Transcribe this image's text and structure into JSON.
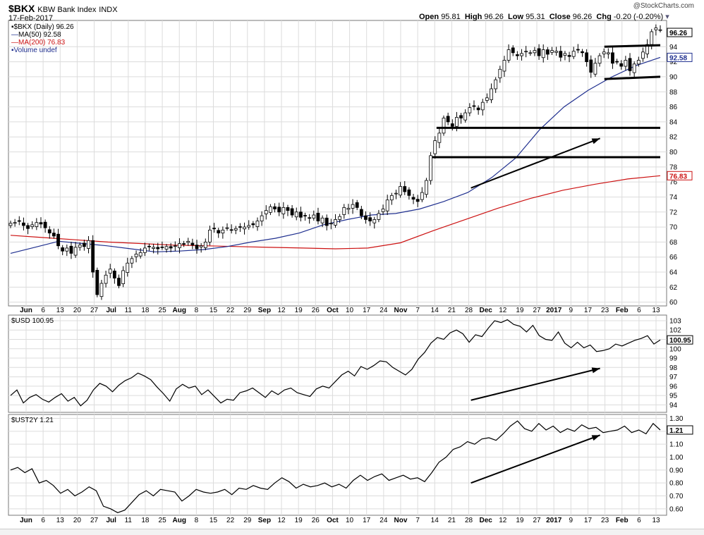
{
  "header": {
    "symbol": "$BKX",
    "name": "KBW Bank Index",
    "exchange": "INDX",
    "date": "17-Feb-2017",
    "watermark": "@StockCharts.com",
    "open_label": "Open",
    "open": "95.81",
    "high_label": "High",
    "high": "96.26",
    "low_label": "Low",
    "low": "95.31",
    "close_label": "Close",
    "close": "96.26",
    "chg_label": "Chg",
    "chg": "-0.20 (-0.20%)"
  },
  "legend": {
    "main": "$BKX (Daily) 96.26",
    "ma50": "MA(50) 92.58",
    "ma200": "MA(200) 76.83",
    "volume": "Volume undef"
  },
  "colors": {
    "price": "#000000",
    "ma50": "#1f2f8f",
    "ma200": "#cc1111",
    "grid": "#dcdcdc",
    "axis": "#555555"
  },
  "x_axis_labels": [
    "Jun",
    "6",
    "13",
    "20",
    "27",
    "Jul",
    "11",
    "18",
    "25",
    "Aug",
    "8",
    "15",
    "22",
    "29",
    "Sep",
    "12",
    "19",
    "26",
    "Oct",
    "10",
    "17",
    "24",
    "Nov",
    "7",
    "14",
    "21",
    "28",
    "Dec",
    "12",
    "19",
    "27",
    "2017",
    "9",
    "17",
    "23",
    "Feb",
    "6",
    "13"
  ],
  "chart_data": [
    {
      "type": "candlestick",
      "title": "$BKX (Daily) 96.26",
      "ylim": [
        59.5,
        97.5
      ],
      "y_ticks": [
        60,
        62,
        64,
        66,
        68,
        70,
        72,
        74,
        76,
        78,
        80,
        82,
        84,
        86,
        88,
        90,
        92,
        94
      ],
      "last_price": "96.26",
      "ma50_last": "92.58",
      "ma200_last": "76.83",
      "close_series": [
        70.5,
        70.6,
        70.8,
        70.2,
        69.8,
        70.3,
        70.6,
        70.4,
        69.9,
        69.2,
        68.8,
        67.5,
        66.8,
        67.2,
        66.5,
        67.3,
        67.6,
        67.4,
        68.2,
        64.0,
        61.0,
        62.5,
        63.6,
        64.4,
        63.2,
        62.2,
        64.2,
        65.2,
        65.8,
        66.4,
        66.6,
        67.2,
        67.4,
        67.3,
        67.1,
        67.3,
        67.4,
        67.2,
        67.5,
        67.8,
        67.7,
        68.1,
        67.6,
        67.1,
        67.5,
        68.0,
        69.6,
        69.8,
        69.2,
        69.6,
        69.9,
        69.6,
        69.8,
        70.0,
        70.0,
        70.2,
        70.3,
        70.8,
        71.5,
        72.2,
        72.7,
        72.4,
        72.0,
        72.6,
        72.2,
        71.6,
        72.0,
        71.3,
        71.5,
        71.2,
        71.6,
        70.8,
        71.2,
        70.2,
        70.5,
        71.0,
        71.4,
        72.6,
        72.5,
        73.0,
        72.6,
        71.5,
        71.0,
        70.8,
        71.0,
        71.8,
        72.4,
        73.6,
        74.2,
        74.5,
        75.4,
        74.7,
        74.2,
        73.7,
        73.4,
        74.6,
        76.2,
        79.5,
        81.5,
        82.5,
        84.5,
        84.0,
        83.4,
        84.6,
        84.5,
        85.2,
        85.9,
        86.1,
        85.6,
        86.6,
        87.2,
        88.4,
        89.6,
        91.0,
        92.2,
        93.6,
        93.2,
        92.8,
        93.1,
        93.4,
        93.2,
        93.5,
        92.8,
        93.6,
        93.0,
        93.5,
        93.4,
        92.6,
        93.1,
        92.7,
        93.4,
        93.6,
        93.2,
        92.0,
        90.6,
        91.8,
        92.8,
        93.3,
        93.2,
        91.8,
        92.0,
        91.4,
        92.2,
        90.8,
        91.7,
        92.2,
        93.3,
        94.3,
        96.0,
        96.5,
        96.26
      ],
      "ma50_series": [
        66.5,
        67.3,
        68.1,
        67.8,
        67.5,
        67.1,
        66.7,
        66.8,
        67.0,
        67.4,
        68.0,
        68.5,
        69.2,
        70.3,
        71.0,
        71.6,
        71.8,
        72.4,
        73.4,
        74.6,
        76.6,
        79.2,
        83.0,
        86.0,
        88.2,
        90.0,
        91.5,
        92.58
      ],
      "ma200_series": [
        68.9,
        68.6,
        68.3,
        68.0,
        67.8,
        67.6,
        67.5,
        67.4,
        67.3,
        67.2,
        67.1,
        67.2,
        67.9,
        69.5,
        71.0,
        72.5,
        73.8,
        74.9,
        75.7,
        76.4,
        76.83
      ],
      "trendlines": [
        {
          "from": [
            138,
            94.0
          ],
          "to": [
            151,
            94.2
          ]
        },
        {
          "from": [
            138,
            89.7
          ],
          "to": [
            151,
            90.0
          ]
        },
        {
          "from": [
            99,
            83.2
          ],
          "to": [
            151,
            83.2
          ]
        },
        {
          "from": [
            98,
            79.3
          ],
          "to": [
            151,
            79.3
          ]
        },
        {
          "from": [
            107,
            75.2
          ],
          "to": [
            137,
            81.8
          ],
          "arrow": true
        }
      ]
    },
    {
      "type": "line",
      "title": "$USD 100.95",
      "ylim": [
        93.2,
        103.6
      ],
      "y_ticks": [
        94,
        95,
        96,
        97,
        98,
        99,
        100,
        101,
        102,
        103
      ],
      "last_value": "100.95",
      "series": [
        95.0,
        95.6,
        94.2,
        94.8,
        95.1,
        94.6,
        94.3,
        94.8,
        95.2,
        94.4,
        94.8,
        93.9,
        94.5,
        95.6,
        96.3,
        96.0,
        95.4,
        96.1,
        96.6,
        96.9,
        97.4,
        97.1,
        96.7,
        95.9,
        95.2,
        94.4,
        95.7,
        96.2,
        95.8,
        96.0,
        95.1,
        95.6,
        94.9,
        94.2,
        94.6,
        94.5,
        95.3,
        95.5,
        95.8,
        95.3,
        94.8,
        95.5,
        95.1,
        95.6,
        95.8,
        95.3,
        95.1,
        94.9,
        95.7,
        96.0,
        95.8,
        96.5,
        97.2,
        97.6,
        97.1,
        98.1,
        97.8,
        98.2,
        98.7,
        98.6,
        98.0,
        97.6,
        97.2,
        97.8,
        98.9,
        99.6,
        100.6,
        101.2,
        101.0,
        101.7,
        102.0,
        101.6,
        100.7,
        101.5,
        101.3,
        102.2,
        103.0,
        102.8,
        103.1,
        102.6,
        102.4,
        101.8,
        102.5,
        101.4,
        101.0,
        100.9,
        101.8,
        100.6,
        100.1,
        100.7,
        100.1,
        100.4,
        99.7,
        99.8,
        100.0,
        100.5,
        100.3,
        100.6,
        100.9,
        101.1,
        101.4,
        100.5,
        100.95
      ],
      "trendline": {
        "from": [
          107,
          94.5
        ],
        "to": [
          137,
          97.9
        ],
        "arrow": true
      }
    },
    {
      "type": "line",
      "title": "$UST2Y 1.21",
      "ylim": [
        0.55,
        1.33
      ],
      "y_ticks": [
        0.6,
        0.7,
        0.8,
        0.9,
        1.0,
        1.1,
        1.2,
        1.3
      ],
      "last_value": "1.21",
      "series": [
        0.9,
        0.92,
        0.88,
        0.91,
        0.8,
        0.82,
        0.78,
        0.72,
        0.75,
        0.7,
        0.73,
        0.77,
        0.74,
        0.62,
        0.6,
        0.57,
        0.59,
        0.65,
        0.71,
        0.74,
        0.7,
        0.75,
        0.74,
        0.73,
        0.66,
        0.7,
        0.75,
        0.73,
        0.72,
        0.73,
        0.75,
        0.71,
        0.76,
        0.75,
        0.78,
        0.76,
        0.75,
        0.8,
        0.84,
        0.81,
        0.76,
        0.79,
        0.77,
        0.78,
        0.8,
        0.77,
        0.79,
        0.76,
        0.82,
        0.86,
        0.82,
        0.85,
        0.87,
        0.82,
        0.84,
        0.86,
        0.83,
        0.84,
        0.81,
        0.88,
        0.96,
        1.0,
        1.06,
        1.08,
        1.12,
        1.1,
        1.14,
        1.15,
        1.13,
        1.18,
        1.24,
        1.28,
        1.22,
        1.2,
        1.26,
        1.21,
        1.24,
        1.19,
        1.22,
        1.2,
        1.25,
        1.22,
        1.23,
        1.19,
        1.2,
        1.21,
        1.24,
        1.19,
        1.21,
        1.18,
        1.26,
        1.21
      ],
      "trendline": {
        "from": [
          107,
          0.8
        ],
        "to": [
          137,
          1.17
        ],
        "arrow": true
      }
    }
  ]
}
